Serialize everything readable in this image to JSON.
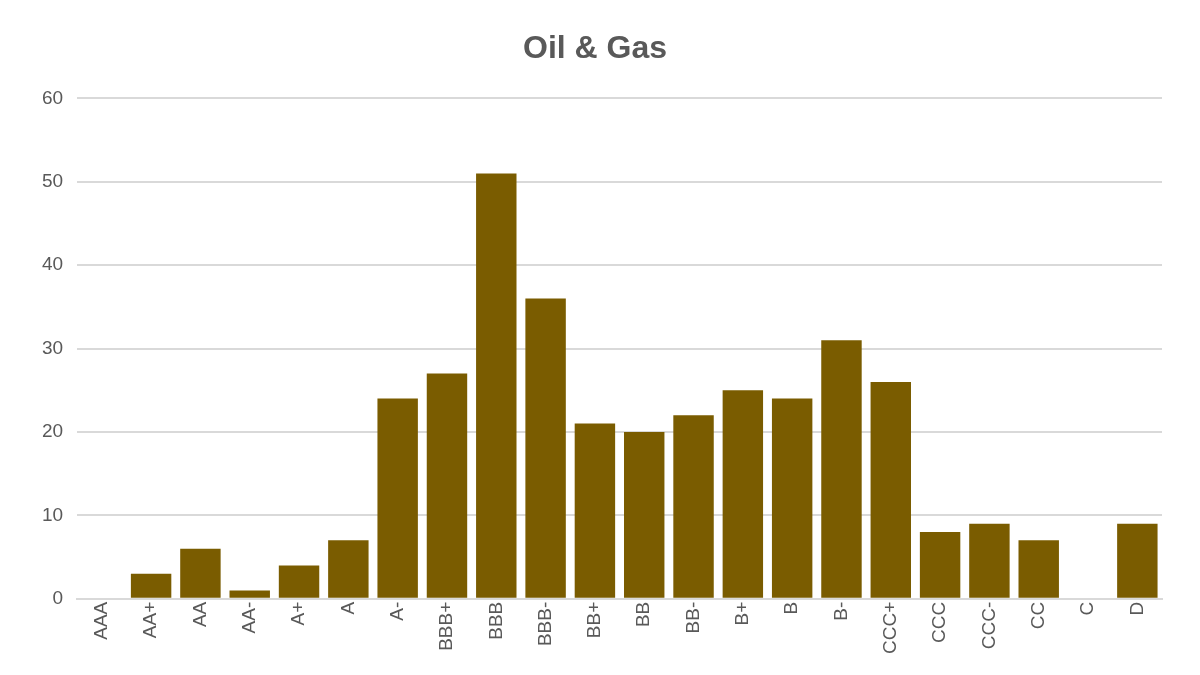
{
  "chart_data": {
    "type": "bar",
    "title": "Oil & Gas",
    "categories": [
      "AAA",
      "AA+",
      "AA",
      "AA-",
      "A+",
      "A",
      "A-",
      "BBB+",
      "BBB",
      "BBB-",
      "BB+",
      "BB",
      "BB-",
      "B+",
      "B",
      "B-",
      "CCC+",
      "CCC",
      "CCC-",
      "CC",
      "C",
      "D"
    ],
    "values": [
      0,
      3,
      6,
      1,
      4,
      7,
      24,
      27,
      51,
      36,
      21,
      20,
      22,
      25,
      24,
      31,
      26,
      8,
      9,
      7,
      0,
      9
    ],
    "color": "#7a5c00",
    "ylim": [
      0,
      60
    ],
    "yticks": [
      0,
      10,
      20,
      30,
      40,
      50,
      60
    ],
    "grid": "y",
    "legend": false
  }
}
